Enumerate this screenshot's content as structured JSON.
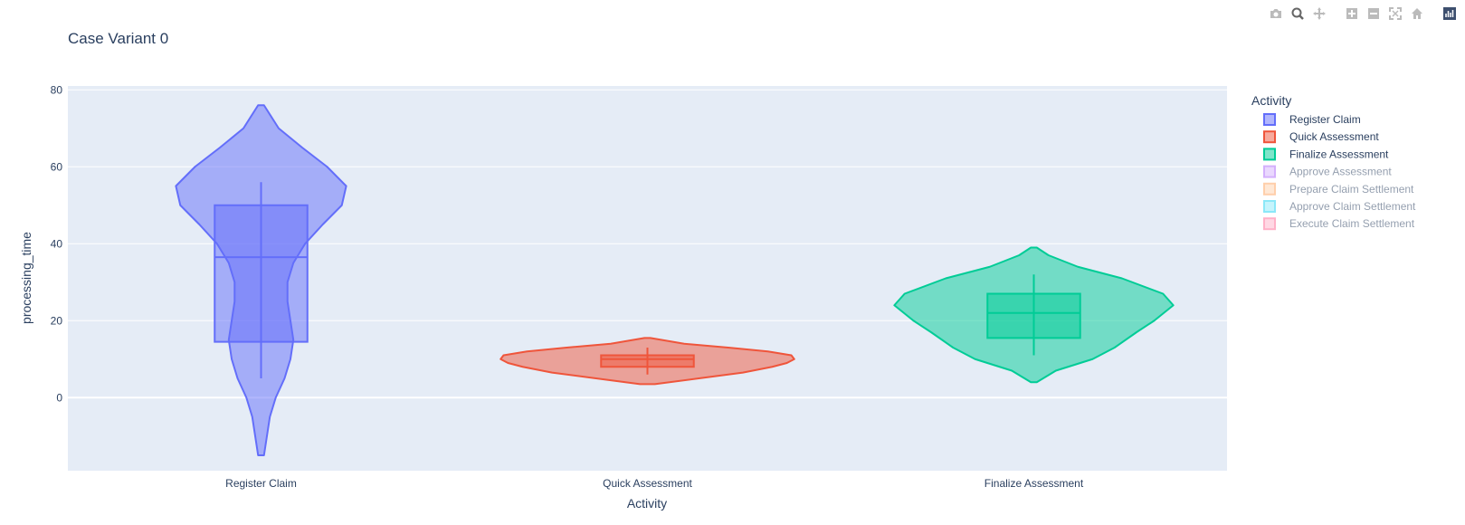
{
  "modebar": {
    "buttons": [
      {
        "name": "camera-icon"
      },
      {
        "name": "zoom-icon",
        "active": true
      },
      {
        "name": "pan-icon"
      },
      {
        "sep": true
      },
      {
        "name": "zoom-in-icon"
      },
      {
        "name": "zoom-out-icon"
      },
      {
        "name": "autoscale-icon"
      },
      {
        "name": "home-icon"
      },
      {
        "sep": true
      },
      {
        "name": "plotly-logo-icon"
      }
    ]
  },
  "chart_data": {
    "type": "violin",
    "title": "Case Variant 0",
    "xlabel": "Activity",
    "ylabel": "processing_time",
    "ylim": [
      -19,
      81
    ],
    "yticks": [
      0,
      20,
      40,
      60,
      80
    ],
    "categories": [
      "Register Claim",
      "Quick Assessment",
      "Finalize Assessment"
    ],
    "grid": true,
    "legend": {
      "title": "Activity",
      "position": "top-right",
      "entries": [
        {
          "name": "Register Claim",
          "color": "#636efa",
          "visible": true
        },
        {
          "name": "Quick Assessment",
          "color": "#ef553b",
          "visible": true
        },
        {
          "name": "Finalize Assessment",
          "color": "#00cc96",
          "visible": true
        },
        {
          "name": "Approve Assessment",
          "color": "#ab63fa",
          "visible": false
        },
        {
          "name": "Prepare Claim Settlement",
          "color": "#ffa15a",
          "visible": false
        },
        {
          "name": "Approve Claim Settlement",
          "color": "#19d3f3",
          "visible": false
        },
        {
          "name": "Execute Claim Settlement",
          "color": "#ff6692",
          "visible": false
        }
      ]
    },
    "series": [
      {
        "name": "Register Claim",
        "color": "#636efa",
        "box": {
          "q1": 14.5,
          "median": 36.5,
          "q3": 50,
          "whisker_low": 5,
          "whisker_high": 56
        },
        "range": [
          -15,
          76
        ],
        "density": [
          [
            -15,
            0.02
          ],
          [
            -10,
            0.04
          ],
          [
            -5,
            0.06
          ],
          [
            0,
            0.1
          ],
          [
            5,
            0.16
          ],
          [
            10,
            0.2
          ],
          [
            15,
            0.22
          ],
          [
            20,
            0.2
          ],
          [
            25,
            0.18
          ],
          [
            30,
            0.18
          ],
          [
            35,
            0.22
          ],
          [
            40,
            0.3
          ],
          [
            45,
            0.42
          ],
          [
            50,
            0.55
          ],
          [
            55,
            0.58
          ],
          [
            60,
            0.45
          ],
          [
            65,
            0.28
          ],
          [
            70,
            0.12
          ],
          [
            76,
            0.02
          ]
        ]
      },
      {
        "name": "Quick Assessment",
        "color": "#ef553b",
        "box": {
          "q1": 8,
          "median": 10,
          "q3": 11,
          "whisker_low": 6,
          "whisker_high": 13
        },
        "range": [
          3.5,
          15.5
        ],
        "density": [
          [
            3.5,
            0.05
          ],
          [
            5,
            0.35
          ],
          [
            6.5,
            0.65
          ],
          [
            8,
            0.85
          ],
          [
            9,
            0.95
          ],
          [
            10,
            1.0
          ],
          [
            11,
            0.98
          ],
          [
            12,
            0.82
          ],
          [
            13,
            0.55
          ],
          [
            14,
            0.25
          ],
          [
            15.5,
            0.02
          ]
        ]
      },
      {
        "name": "Finalize Assessment",
        "color": "#00cc96",
        "box": {
          "q1": 15.5,
          "median": 22,
          "q3": 27,
          "whisker_low": 11,
          "whisker_high": 32
        },
        "range": [
          4,
          39
        ],
        "density": [
          [
            4,
            0.02
          ],
          [
            7,
            0.15
          ],
          [
            10,
            0.4
          ],
          [
            13,
            0.55
          ],
          [
            17,
            0.7
          ],
          [
            20,
            0.82
          ],
          [
            24,
            0.95
          ],
          [
            27,
            0.88
          ],
          [
            31,
            0.6
          ],
          [
            34,
            0.3
          ],
          [
            37,
            0.1
          ],
          [
            39,
            0.02
          ]
        ]
      }
    ]
  }
}
